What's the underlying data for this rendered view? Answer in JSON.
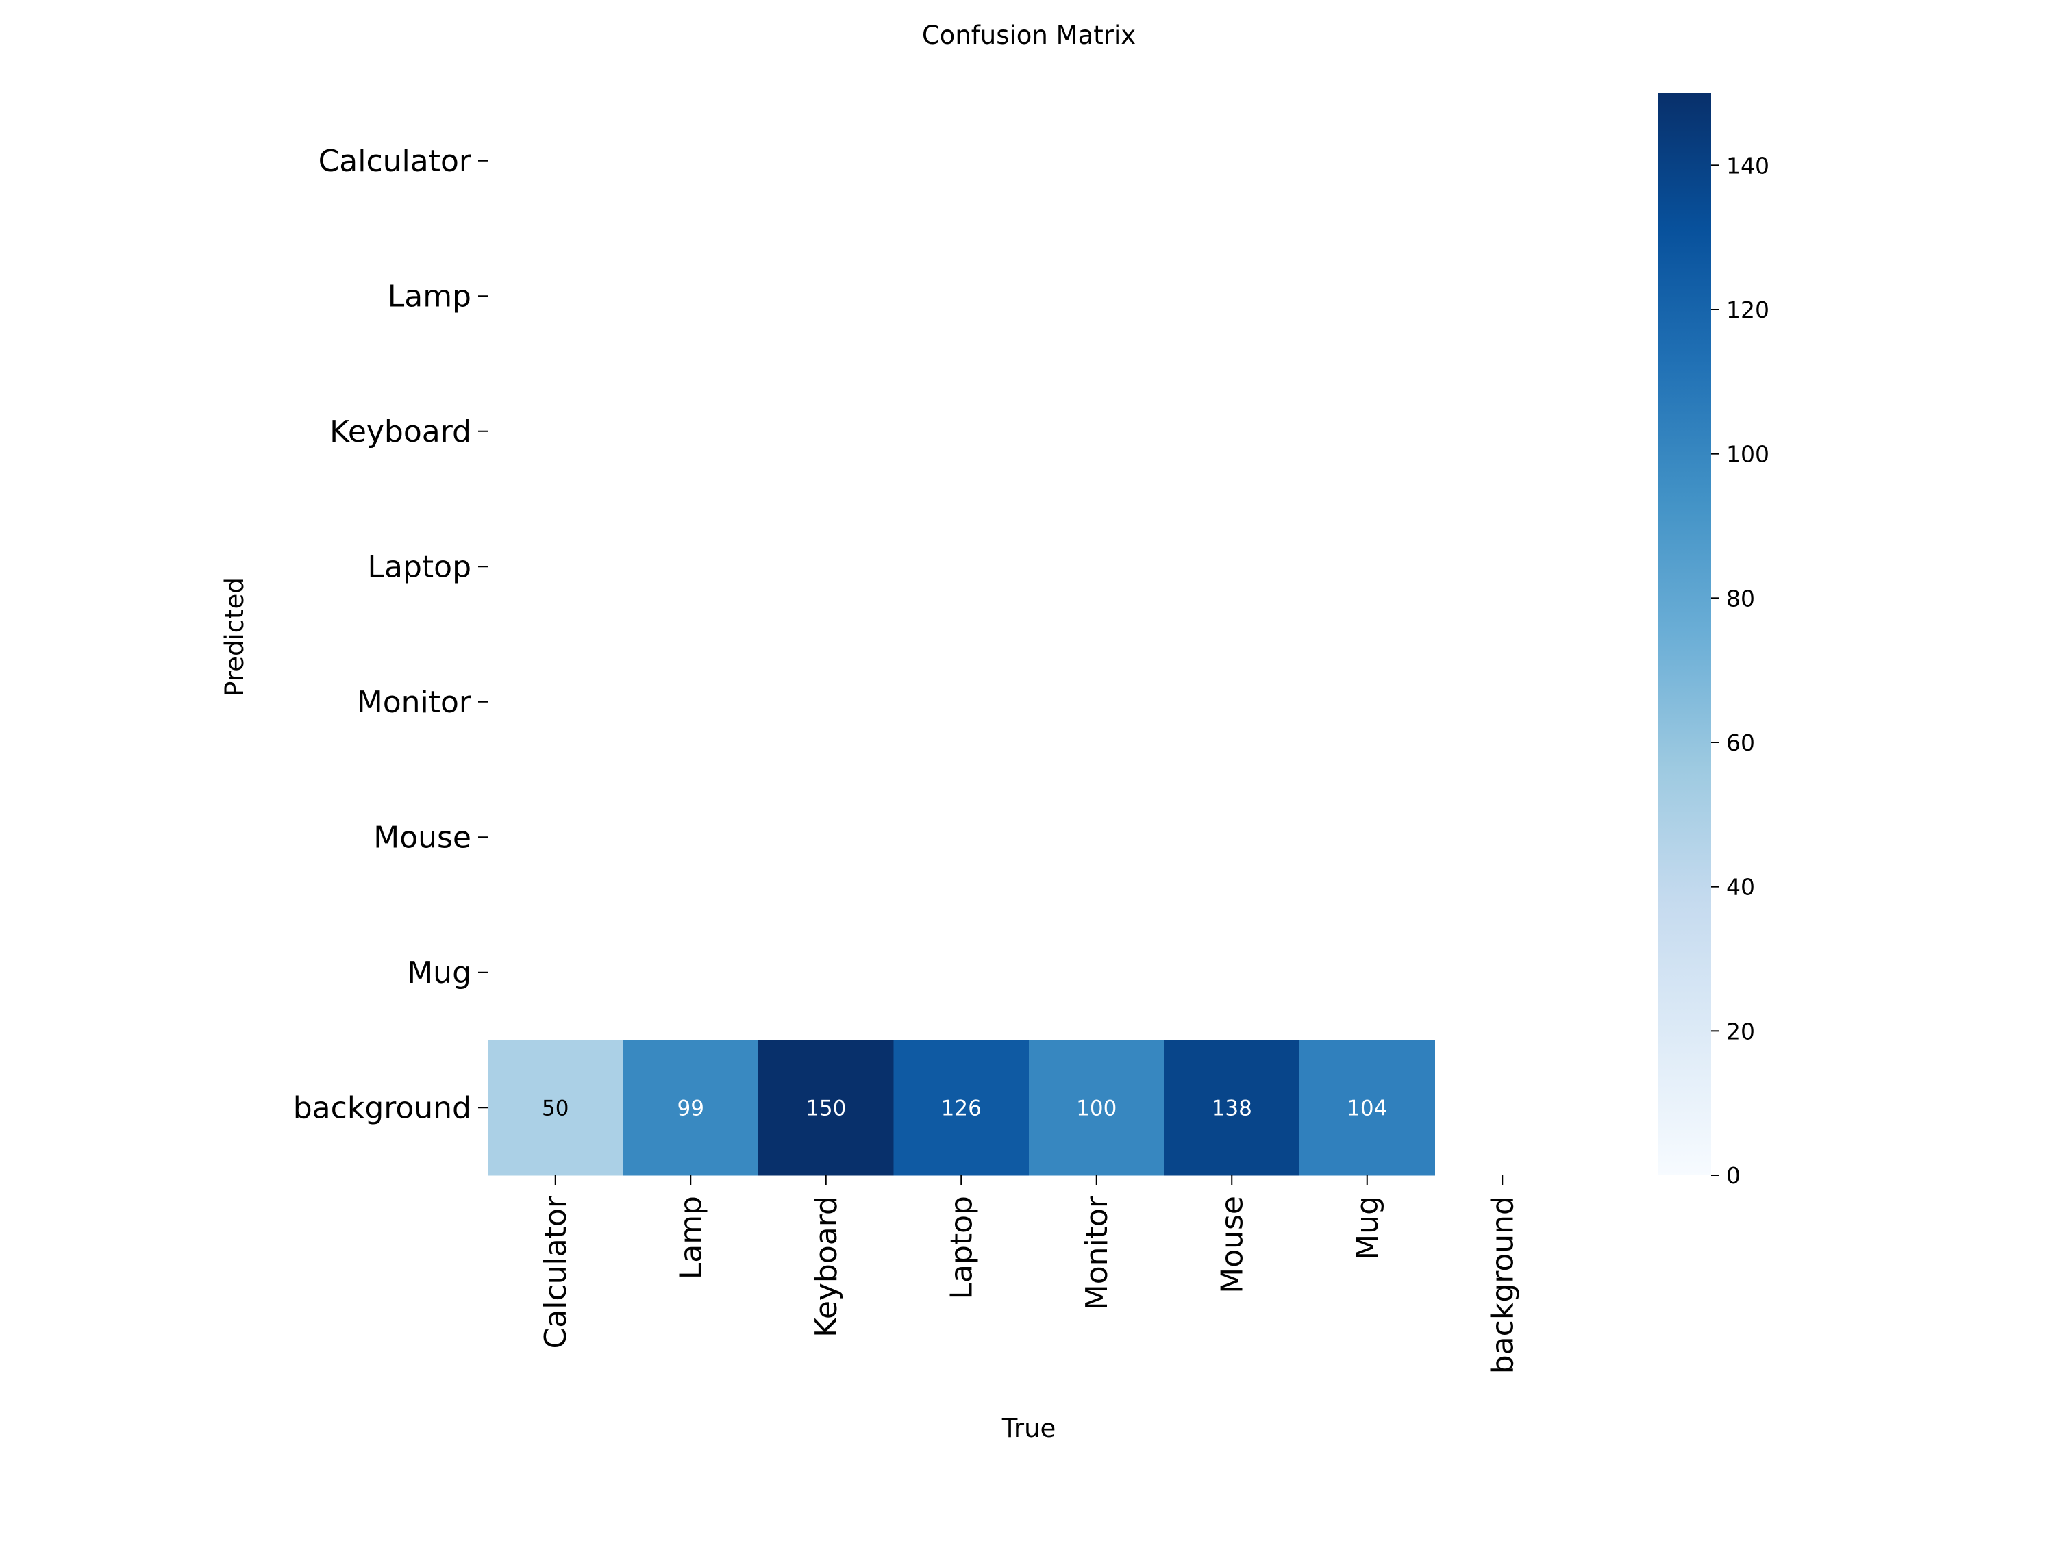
{
  "chart_data": {
    "type": "heatmap",
    "title": "Confusion Matrix",
    "xlabel": "True",
    "ylabel": "Predicted",
    "x_categories": [
      "Calculator",
      "Lamp",
      "Keyboard",
      "Laptop",
      "Monitor",
      "Mouse",
      "Mug",
      "background"
    ],
    "y_categories": [
      "Calculator",
      "Lamp",
      "Keyboard",
      "Laptop",
      "Monitor",
      "Mouse",
      "Mug",
      "background"
    ],
    "matrix": [
      [
        null,
        null,
        null,
        null,
        null,
        null,
        null,
        null
      ],
      [
        null,
        null,
        null,
        null,
        null,
        null,
        null,
        null
      ],
      [
        null,
        null,
        null,
        null,
        null,
        null,
        null,
        null
      ],
      [
        null,
        null,
        null,
        null,
        null,
        null,
        null,
        null
      ],
      [
        null,
        null,
        null,
        null,
        null,
        null,
        null,
        null
      ],
      [
        null,
        null,
        null,
        null,
        null,
        null,
        null,
        null
      ],
      [
        null,
        null,
        null,
        null,
        null,
        null,
        null,
        null
      ],
      [
        50,
        99,
        150,
        126,
        100,
        138,
        104,
        null
      ]
    ],
    "colormap": "Blues",
    "colorbar": {
      "range": [
        0,
        150
      ],
      "ticks": [
        0,
        20,
        40,
        60,
        80,
        100,
        120,
        140
      ]
    },
    "grid": false
  }
}
